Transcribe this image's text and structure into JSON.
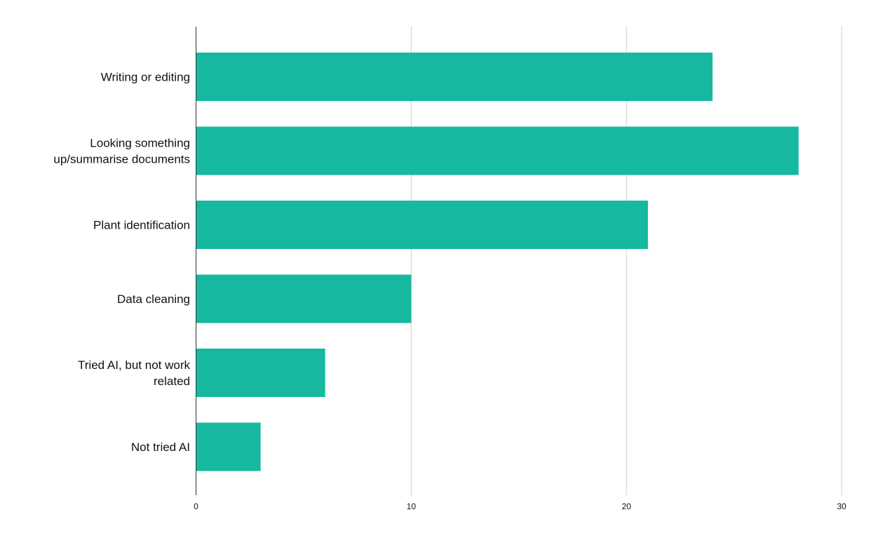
{
  "chart_data": {
    "type": "bar",
    "orientation": "horizontal",
    "categories": [
      [
        "Writing or editing"
      ],
      [
        "Looking something",
        "up/summarise documents"
      ],
      [
        "Plant identification"
      ],
      [
        "Data cleaning"
      ],
      [
        "Tried AI, but not work",
        "related"
      ],
      [
        "Not tried AI"
      ]
    ],
    "values": [
      24,
      28,
      21,
      10,
      6,
      3
    ],
    "xlim": [
      0,
      30
    ],
    "ticks": [
      "0",
      "10",
      "20",
      "30"
    ],
    "grid": true,
    "title": "",
    "xlabel": "",
    "ylabel": "",
    "colors": {
      "bar": "#16b8a0",
      "grid": "#cccccc",
      "axis": "#333333"
    }
  }
}
